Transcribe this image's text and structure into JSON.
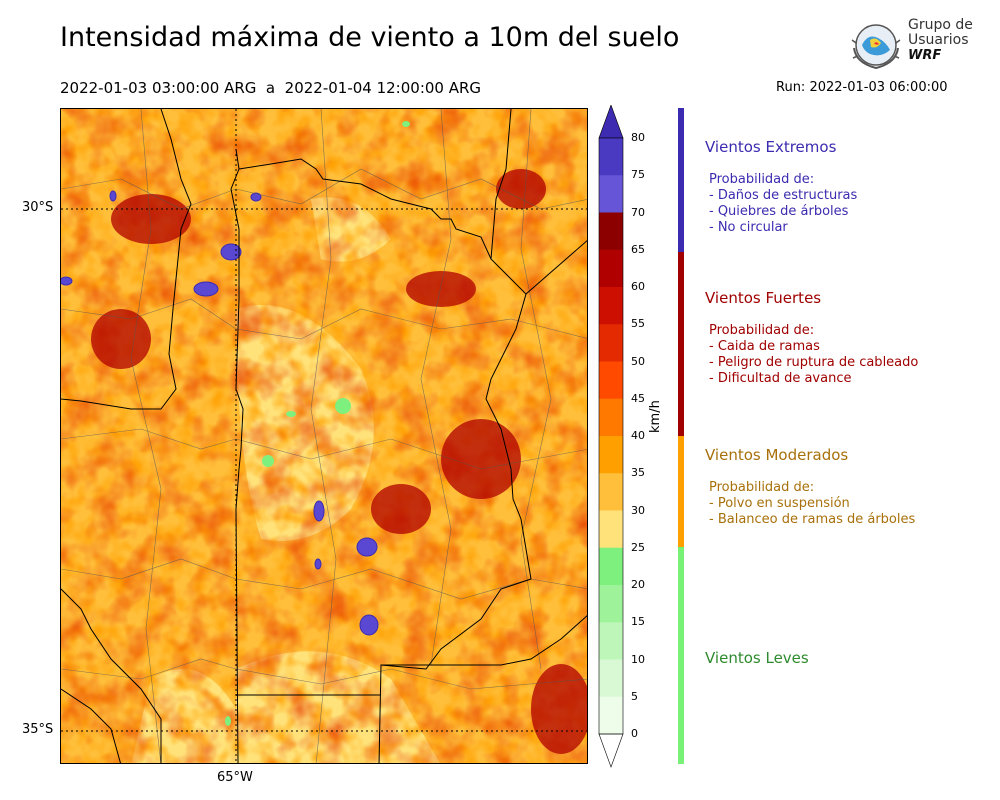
{
  "title": "Intensidad máxima de viento a 10m del suelo",
  "period": "2022-01-03 03:00:00 ARG  a  2022-01-04 12:00:00 ARG",
  "run": "Run: 2022-01-03 06:00:00",
  "logo": {
    "line1": "Grupo de",
    "line2": "Usuarios",
    "line3": "WRF"
  },
  "map": {
    "lat_labels": [
      "30°S",
      "35°S"
    ],
    "lon_labels": [
      "65°W"
    ]
  },
  "colorbar": {
    "unit": "km/h",
    "ticks": [
      "80",
      "75",
      "70",
      "65",
      "60",
      "55",
      "50",
      "45",
      "40",
      "35",
      "30",
      "25",
      "20",
      "15",
      "10",
      "5",
      "0"
    ],
    "colors": [
      "#3d2bb1",
      "#4a3ac2",
      "#6655d6",
      "#8c0000",
      "#b00000",
      "#cc0f00",
      "#e32a00",
      "#ff4a00",
      "#ff7800",
      "#ff9f00",
      "#ffbf3a",
      "#ffe27a",
      "#7ef07e",
      "#9ef29a",
      "#bdf6b8",
      "#d9f9d4",
      "#eefcea"
    ]
  },
  "categories": [
    {
      "name": "Vientos Extremos",
      "color": "#3a2bb0",
      "prob": "Probabilidad de:",
      "items": [
        "- Daños de estructuras",
        "- Quiebres de árboles",
        "- No circular"
      ]
    },
    {
      "name": "Vientos Fuertes",
      "color": "#a00000",
      "prob": "Probabilidad de:",
      "items": [
        "- Caida de ramas",
        "- Peligro de ruptura de cableado",
        "- Dificultad de avance"
      ]
    },
    {
      "name": "Vientos Moderados",
      "color": "#a8700a",
      "prob": "Probabilidad de:",
      "items": [
        "- Polvo en suspensión",
        "- Balanceo de ramas de árboles"
      ]
    },
    {
      "name": "Vientos Leves",
      "color": "#2e8a2e",
      "prob": "",
      "items": []
    }
  ],
  "legend_bar_colors": {
    "extremos": "#3a2bb0",
    "fuertes": "#a00000",
    "moderados": "#ff9f00",
    "leves": "#77f277"
  }
}
